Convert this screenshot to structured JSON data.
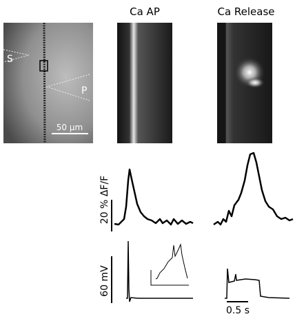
{
  "panels": {
    "titles": [
      "Ca AP",
      "Ca Release"
    ]
  },
  "image": {
    "labels": {
      "s": "S",
      "p": "P"
    },
    "scale_bar": "50 μm"
  },
  "scale_bars": {
    "fluorescence": "20 % ΔF/F",
    "voltage": "60 mV",
    "time": "0.5 s"
  }
}
